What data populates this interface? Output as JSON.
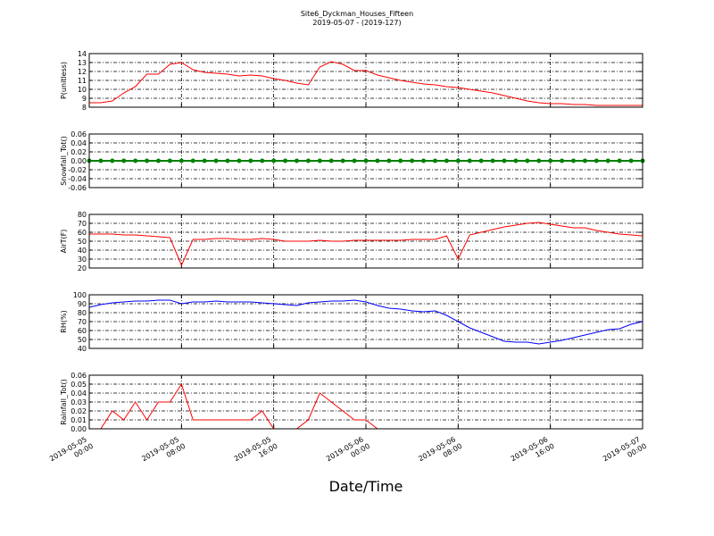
{
  "chart_data": [
    {
      "type": "line",
      "title": "Site6_Dyckman_Houses_Fifteen",
      "subtitle": "2019-05-07 - (2019-127)",
      "ylabel": "P(unitless)",
      "color": "#ff0000",
      "grid": true,
      "xlim": [
        "2019-05-05 00:00",
        "2019-05-07 00:00"
      ],
      "ylim": [
        8,
        14
      ],
      "yticks": [
        8,
        9,
        10,
        11,
        12,
        13,
        14
      ],
      "x": [
        "2019-05-05 00:00",
        "2019-05-05 01:00",
        "2019-05-05 02:00",
        "2019-05-05 03:00",
        "2019-05-05 04:00",
        "2019-05-05 05:00",
        "2019-05-05 06:00",
        "2019-05-05 07:00",
        "2019-05-05 08:00",
        "2019-05-05 09:00",
        "2019-05-05 10:00",
        "2019-05-05 11:00",
        "2019-05-05 12:00",
        "2019-05-05 13:00",
        "2019-05-05 14:00",
        "2019-05-05 15:00",
        "2019-05-05 16:00",
        "2019-05-05 17:00",
        "2019-05-05 18:00",
        "2019-05-05 19:00",
        "2019-05-05 20:00",
        "2019-05-05 21:00",
        "2019-05-05 22:00",
        "2019-05-05 23:00",
        "2019-05-06 00:00",
        "2019-05-06 01:00",
        "2019-05-06 02:00",
        "2019-05-06 03:00",
        "2019-05-06 04:00",
        "2019-05-06 05:00",
        "2019-05-06 06:00",
        "2019-05-06 07:00",
        "2019-05-06 08:00",
        "2019-05-06 09:00",
        "2019-05-06 10:00",
        "2019-05-06 11:00",
        "2019-05-06 12:00",
        "2019-05-06 13:00",
        "2019-05-06 14:00",
        "2019-05-06 15:00",
        "2019-05-06 16:00",
        "2019-05-06 17:00",
        "2019-05-06 18:00",
        "2019-05-06 19:00",
        "2019-05-06 20:00",
        "2019-05-06 21:00",
        "2019-05-06 22:00",
        "2019-05-06 23:00",
        "2019-05-07 00:00"
      ],
      "values": [
        8.5,
        8.5,
        8.7,
        9.6,
        10.3,
        11.7,
        11.7,
        12.8,
        13.0,
        12.2,
        11.9,
        11.8,
        11.7,
        11.5,
        11.6,
        11.5,
        11.2,
        11.0,
        10.7,
        10.5,
        12.5,
        13.1,
        12.8,
        12.1,
        12.1,
        11.6,
        11.3,
        11.0,
        10.8,
        10.6,
        10.5,
        10.3,
        10.2,
        10.0,
        9.8,
        9.6,
        9.3,
        9.0,
        8.7,
        8.5,
        8.4,
        8.4,
        8.3,
        8.3,
        8.2,
        8.2,
        8.2,
        8.2,
        8.2
      ]
    },
    {
      "type": "line",
      "marker": true,
      "ylabel": "Snowfall_Tot()",
      "color": "#008000",
      "grid": true,
      "xlim": [
        "2019-05-05 00:00",
        "2019-05-07 00:00"
      ],
      "ylim": [
        -0.06,
        0.06
      ],
      "yticks": [
        -0.06,
        -0.04,
        -0.02,
        {
          "value": 0,
          "label": "0.00"
        },
        0.02,
        0.04,
        0.06
      ],
      "x": [
        "2019-05-05 00:00",
        "2019-05-05 01:00",
        "2019-05-05 02:00",
        "2019-05-05 03:00",
        "2019-05-05 04:00",
        "2019-05-05 05:00",
        "2019-05-05 06:00",
        "2019-05-05 07:00",
        "2019-05-05 08:00",
        "2019-05-05 09:00",
        "2019-05-05 10:00",
        "2019-05-05 11:00",
        "2019-05-05 12:00",
        "2019-05-05 13:00",
        "2019-05-05 14:00",
        "2019-05-05 15:00",
        "2019-05-05 16:00",
        "2019-05-05 17:00",
        "2019-05-05 18:00",
        "2019-05-05 19:00",
        "2019-05-05 20:00",
        "2019-05-05 21:00",
        "2019-05-05 22:00",
        "2019-05-05 23:00",
        "2019-05-06 00:00",
        "2019-05-06 01:00",
        "2019-05-06 02:00",
        "2019-05-06 03:00",
        "2019-05-06 04:00",
        "2019-05-06 05:00",
        "2019-05-06 06:00",
        "2019-05-06 07:00",
        "2019-05-06 08:00",
        "2019-05-06 09:00",
        "2019-05-06 10:00",
        "2019-05-06 11:00",
        "2019-05-06 12:00",
        "2019-05-06 13:00",
        "2019-05-06 14:00",
        "2019-05-06 15:00",
        "2019-05-06 16:00",
        "2019-05-06 17:00",
        "2019-05-06 18:00",
        "2019-05-06 19:00",
        "2019-05-06 20:00",
        "2019-05-06 21:00",
        "2019-05-06 22:00",
        "2019-05-06 23:00",
        "2019-05-07 00:00"
      ],
      "values": [
        0,
        0,
        0,
        0,
        0,
        0,
        0,
        0,
        0,
        0,
        0,
        0,
        0,
        0,
        0,
        0,
        0,
        0,
        0,
        0,
        0,
        0,
        0,
        0,
        0,
        0,
        0,
        0,
        0,
        0,
        0,
        0,
        0,
        0,
        0,
        0,
        0,
        0,
        0,
        0,
        0,
        0,
        0,
        0,
        0,
        0,
        0,
        0,
        0
      ]
    },
    {
      "type": "line",
      "ylabel": "AirT(F)",
      "color": "#ff0000",
      "grid": true,
      "xlim": [
        "2019-05-05 00:00",
        "2019-05-07 00:00"
      ],
      "ylim": [
        20,
        80
      ],
      "yticks": [
        20,
        30,
        40,
        50,
        60,
        70,
        80
      ],
      "x": [
        "2019-05-05 00:00",
        "2019-05-05 01:00",
        "2019-05-05 02:00",
        "2019-05-05 03:00",
        "2019-05-05 04:00",
        "2019-05-05 05:00",
        "2019-05-05 06:00",
        "2019-05-05 07:00",
        "2019-05-05 08:00",
        "2019-05-05 09:00",
        "2019-05-05 10:00",
        "2019-05-05 11:00",
        "2019-05-05 12:00",
        "2019-05-05 13:00",
        "2019-05-05 14:00",
        "2019-05-05 15:00",
        "2019-05-05 16:00",
        "2019-05-05 17:00",
        "2019-05-05 18:00",
        "2019-05-05 19:00",
        "2019-05-05 20:00",
        "2019-05-05 21:00",
        "2019-05-05 22:00",
        "2019-05-05 23:00",
        "2019-05-06 00:00",
        "2019-05-06 01:00",
        "2019-05-06 02:00",
        "2019-05-06 03:00",
        "2019-05-06 04:00",
        "2019-05-06 05:00",
        "2019-05-06 06:00",
        "2019-05-06 07:00",
        "2019-05-06 08:00",
        "2019-05-06 09:00",
        "2019-05-06 10:00",
        "2019-05-06 11:00",
        "2019-05-06 12:00",
        "2019-05-06 13:00",
        "2019-05-06 14:00",
        "2019-05-06 15:00",
        "2019-05-06 16:00",
        "2019-05-06 17:00",
        "2019-05-06 18:00",
        "2019-05-06 19:00",
        "2019-05-06 20:00",
        "2019-05-06 21:00",
        "2019-05-06 22:00",
        "2019-05-06 23:00",
        "2019-05-07 00:00"
      ],
      "values": [
        58,
        58,
        58,
        57,
        57,
        56,
        55,
        54,
        23,
        52,
        52,
        53,
        53,
        52,
        52,
        53,
        52,
        50,
        50,
        50,
        51,
        50,
        50,
        51,
        51,
        51,
        51,
        51,
        52,
        52,
        52,
        56,
        30,
        57,
        60,
        63,
        66,
        68,
        70,
        71,
        69,
        67,
        65,
        65,
        62,
        60,
        58,
        57,
        56
      ]
    },
    {
      "type": "line",
      "ylabel": "RH(%)",
      "color": "#0000ff",
      "grid": true,
      "xlim": [
        "2019-05-05 00:00",
        "2019-05-07 00:00"
      ],
      "ylim": [
        40,
        100
      ],
      "yticks": [
        40,
        50,
        60,
        70,
        80,
        90,
        100
      ],
      "x": [
        "2019-05-05 00:00",
        "2019-05-05 01:00",
        "2019-05-05 02:00",
        "2019-05-05 03:00",
        "2019-05-05 04:00",
        "2019-05-05 05:00",
        "2019-05-05 06:00",
        "2019-05-05 07:00",
        "2019-05-05 08:00",
        "2019-05-05 09:00",
        "2019-05-05 10:00",
        "2019-05-05 11:00",
        "2019-05-05 12:00",
        "2019-05-05 13:00",
        "2019-05-05 14:00",
        "2019-05-05 15:00",
        "2019-05-05 16:00",
        "2019-05-05 17:00",
        "2019-05-05 18:00",
        "2019-05-05 19:00",
        "2019-05-05 20:00",
        "2019-05-05 21:00",
        "2019-05-05 22:00",
        "2019-05-05 23:00",
        "2019-05-06 00:00",
        "2019-05-06 01:00",
        "2019-05-06 02:00",
        "2019-05-06 03:00",
        "2019-05-06 04:00",
        "2019-05-06 05:00",
        "2019-05-06 06:00",
        "2019-05-06 07:00",
        "2019-05-06 08:00",
        "2019-05-06 09:00",
        "2019-05-06 10:00",
        "2019-05-06 11:00",
        "2019-05-06 12:00",
        "2019-05-06 13:00",
        "2019-05-06 14:00",
        "2019-05-06 15:00",
        "2019-05-06 16:00",
        "2019-05-06 17:00",
        "2019-05-06 18:00",
        "2019-05-06 19:00",
        "2019-05-06 20:00",
        "2019-05-06 21:00",
        "2019-05-06 22:00",
        "2019-05-06 23:00",
        "2019-05-07 00:00"
      ],
      "values": [
        86,
        89,
        91,
        92,
        93,
        93,
        94,
        94,
        90,
        92,
        92,
        93,
        92,
        92,
        92,
        91,
        90,
        89,
        88,
        91,
        92,
        93,
        93,
        94,
        92,
        88,
        85,
        84,
        82,
        81,
        82,
        77,
        70,
        63,
        58,
        53,
        48,
        47,
        47,
        45,
        47,
        49,
        52,
        55,
        58,
        61,
        62,
        67,
        70
      ]
    },
    {
      "type": "line",
      "ylabel": "Rainfall_Tot()",
      "xlabel": "Date/Time",
      "color": "#ff0000",
      "grid": true,
      "xlim": [
        "2019-05-05 00:00",
        "2019-05-07 00:00"
      ],
      "ylim": [
        0,
        0.06
      ],
      "yticks": [
        {
          "value": 0,
          "label": "0.00"
        },
        0.01,
        0.02,
        0.03,
        0.04,
        0.05,
        0.06
      ],
      "xticks": [
        "2019-05-05 00:00",
        "2019-05-05 08:00",
        "2019-05-05 16:00",
        "2019-05-06 00:00",
        "2019-05-06 08:00",
        "2019-05-06 16:00",
        "2019-05-07 00:00"
      ],
      "x": [
        "2019-05-05 00:00",
        "2019-05-05 01:00",
        "2019-05-05 02:00",
        "2019-05-05 03:00",
        "2019-05-05 04:00",
        "2019-05-05 05:00",
        "2019-05-05 06:00",
        "2019-05-05 07:00",
        "2019-05-05 08:00",
        "2019-05-05 09:00",
        "2019-05-05 10:00",
        "2019-05-05 11:00",
        "2019-05-05 12:00",
        "2019-05-05 13:00",
        "2019-05-05 14:00",
        "2019-05-05 15:00",
        "2019-05-05 16:00",
        "2019-05-05 17:00",
        "2019-05-05 18:00",
        "2019-05-05 19:00",
        "2019-05-05 20:00",
        "2019-05-05 21:00",
        "2019-05-05 22:00",
        "2019-05-05 23:00",
        "2019-05-06 00:00",
        "2019-05-06 01:00",
        "2019-05-06 02:00",
        "2019-05-06 03:00",
        "2019-05-06 04:00",
        "2019-05-06 05:00",
        "2019-05-06 06:00",
        "2019-05-06 07:00",
        "2019-05-06 08:00",
        "2019-05-06 09:00",
        "2019-05-06 10:00",
        "2019-05-06 11:00",
        "2019-05-06 12:00",
        "2019-05-06 13:00",
        "2019-05-06 14:00",
        "2019-05-06 15:00",
        "2019-05-06 16:00",
        "2019-05-06 17:00",
        "2019-05-06 18:00",
        "2019-05-06 19:00",
        "2019-05-06 20:00",
        "2019-05-06 21:00",
        "2019-05-06 22:00",
        "2019-05-06 23:00",
        "2019-05-07 00:00"
      ],
      "values": [
        0,
        0,
        0.02,
        0.01,
        0.03,
        0.01,
        0.03,
        0.03,
        0.05,
        0.01,
        0.01,
        0.01,
        0.01,
        0.01,
        0.01,
        0.02,
        0,
        0,
        0,
        0.01,
        0.04,
        0.03,
        0.02,
        0.01,
        0.01,
        0,
        0,
        0,
        0,
        0,
        0,
        0,
        0,
        0,
        0,
        0,
        0,
        0,
        0,
        0,
        0,
        0,
        0,
        0,
        0,
        0,
        0,
        0,
        0
      ]
    }
  ]
}
